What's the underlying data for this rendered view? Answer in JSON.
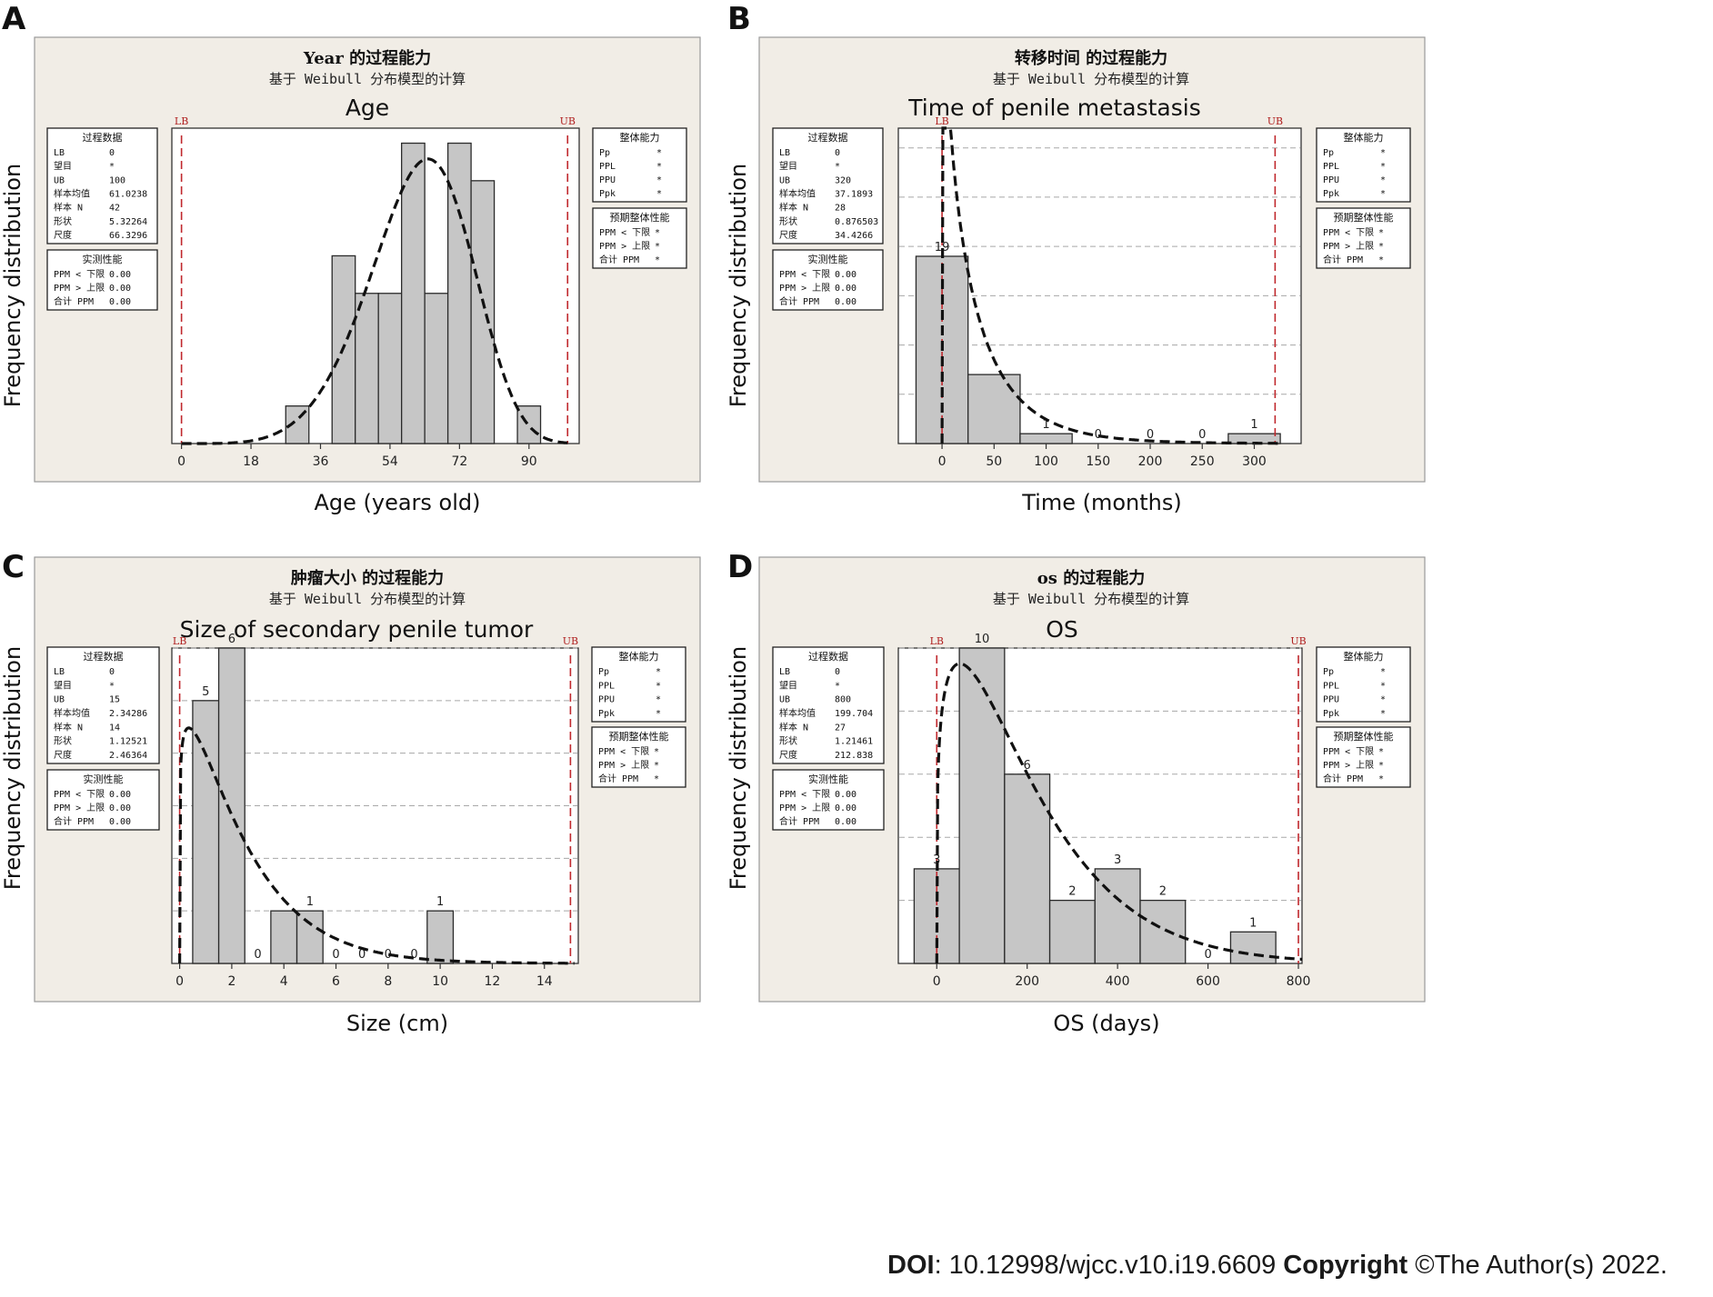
{
  "footer": {
    "doi_label": "DOI",
    "doi_value": ": 10.12998/wjcc.v10.i19.6609 ",
    "copyright_label": "Copyright",
    "copyright_text": " ©The Author(s) 2022."
  },
  "chart_data": [
    {
      "panel_letter": "A",
      "type": "bar",
      "minitab_title": "Year 的过程能力",
      "minitab_subtitle": "基于 Weibull 分布模型的计算",
      "title": "Age",
      "xlabel": "Age (years old)",
      "ylabel": "Frequency distribution",
      "lb_label": "LB",
      "ub_label": "UB",
      "lb": 0,
      "ub": 100,
      "xlim": [
        -2.5,
        103
      ],
      "ylim": [
        0,
        8.4
      ],
      "xticks": [
        0,
        18,
        36,
        54,
        72,
        90
      ],
      "xtick_labels": [
        "0",
        "18",
        "36",
        "54",
        "72",
        "90"
      ],
      "gridlines": [],
      "bins": [
        {
          "left": 27,
          "right": 33,
          "value": 1
        },
        {
          "left": 39,
          "right": 45,
          "value": 5
        },
        {
          "left": 45,
          "right": 51,
          "value": 4
        },
        {
          "left": 51,
          "right": 57,
          "value": 4
        },
        {
          "left": 57,
          "right": 63,
          "value": 8
        },
        {
          "left": 63,
          "right": 69,
          "value": 4
        },
        {
          "left": 69,
          "right": 75,
          "value": 8
        },
        {
          "left": 75,
          "right": 81,
          "value": 7
        },
        {
          "left": 87,
          "right": 93,
          "value": 1
        }
      ],
      "bar_labels": [],
      "fit_curve": {
        "shape": 5.32264,
        "scale": 66.3296,
        "n": 42,
        "binwidth": 6
      },
      "box1": {
        "title": "过程数据",
        "rows": [
          {
            "label": "LB",
            "value": "0"
          },
          {
            "label": "望目",
            "value": "*"
          },
          {
            "label": "UB",
            "value": "100"
          },
          {
            "label": "样本均值",
            "value": "61.0238"
          },
          {
            "label": "样本 N",
            "value": "42"
          },
          {
            "label": "形状",
            "value": "5.32264"
          },
          {
            "label": "尺度",
            "value": "66.3296"
          }
        ]
      },
      "box2": {
        "title": "实测性能",
        "rows": [
          {
            "label": "PPM < 下限",
            "value": "0.00"
          },
          {
            "label": "PPM > 上限",
            "value": "0.00"
          },
          {
            "label": "合计 PPM",
            "value": "0.00"
          }
        ]
      },
      "box3": {
        "title": "整体能力",
        "rows": [
          {
            "label": "Pp",
            "value": "*"
          },
          {
            "label": "PPL",
            "value": "*"
          },
          {
            "label": "PPU",
            "value": "*"
          },
          {
            "label": "Ppk",
            "value": "*"
          }
        ]
      },
      "box4": {
        "title": "预期整体性能",
        "rows": [
          {
            "label": "PPM < 下限",
            "value": "*"
          },
          {
            "label": "PPM > 上限",
            "value": "*"
          },
          {
            "label": "合计 PPM",
            "value": "*"
          }
        ]
      }
    },
    {
      "panel_letter": "B",
      "type": "bar",
      "minitab_title": "转移时间 的过程能力",
      "minitab_subtitle": "基于 Weibull 分布模型的计算",
      "title": "Time of penile metastasis",
      "xlabel": "Time (months)",
      "ylabel": "Frequency distribution",
      "lb_label": "LB",
      "ub_label": "UB",
      "lb": 0,
      "ub": 320,
      "xlim": [
        -42,
        345
      ],
      "ylim": [
        0,
        32
      ],
      "xticks": [
        0,
        50,
        100,
        150,
        200,
        250,
        300
      ],
      "xtick_labels": [
        "0",
        "50",
        "100",
        "150",
        "200",
        "250",
        "300"
      ],
      "gridlines": [
        5,
        10,
        15,
        20,
        25,
        30
      ],
      "bins": [
        {
          "left": -25,
          "right": 25,
          "value": 19
        },
        {
          "left": 25,
          "right": 75,
          "value": 7
        },
        {
          "left": 75,
          "right": 125,
          "value": 1
        },
        {
          "left": 125,
          "right": 175,
          "value": 0
        },
        {
          "left": 175,
          "right": 225,
          "value": 0
        },
        {
          "left": 225,
          "right": 275,
          "value": 0
        },
        {
          "left": 275,
          "right": 325,
          "value": 1
        }
      ],
      "bar_labels": [
        "19",
        "",
        "1",
        "0",
        "0",
        "0",
        "1"
      ],
      "fit_curve": {
        "shape": 0.876503,
        "scale": 34.4266,
        "n": 28,
        "binwidth": 50
      },
      "box1": {
        "title": "过程数据",
        "rows": [
          {
            "label": "LB",
            "value": "0"
          },
          {
            "label": "望目",
            "value": "*"
          },
          {
            "label": "UB",
            "value": "320"
          },
          {
            "label": "样本均值",
            "value": "37.1893"
          },
          {
            "label": "样本 N",
            "value": "28"
          },
          {
            "label": "形状",
            "value": "0.876503"
          },
          {
            "label": "尺度",
            "value": "34.4266"
          }
        ]
      },
      "box2": {
        "title": "实测性能",
        "rows": [
          {
            "label": "PPM < 下限",
            "value": "0.00"
          },
          {
            "label": "PPM > 上限",
            "value": "0.00"
          },
          {
            "label": "合计 PPM",
            "value": "0.00"
          }
        ]
      },
      "box3": {
        "title": "整体能力",
        "rows": [
          {
            "label": "Pp",
            "value": "*"
          },
          {
            "label": "PPL",
            "value": "*"
          },
          {
            "label": "PPU",
            "value": "*"
          },
          {
            "label": "Ppk",
            "value": "*"
          }
        ]
      },
      "box4": {
        "title": "预期整体性能",
        "rows": [
          {
            "label": "PPM < 下限",
            "value": "*"
          },
          {
            "label": "PPM > 上限",
            "value": "*"
          },
          {
            "label": "合计 PPM",
            "value": "*"
          }
        ]
      }
    },
    {
      "panel_letter": "C",
      "type": "bar",
      "minitab_title": "肿瘤大小 的过程能力",
      "minitab_subtitle": "基于 Weibull 分布模型的计算",
      "title": "Size of secondary penile tumor",
      "xlabel": "Size (cm)",
      "ylabel": "Frequency distribution",
      "lb_label": "LB",
      "ub_label": "UB",
      "lb": 0,
      "ub": 15,
      "xlim": [
        -0.3,
        15.3
      ],
      "ylim": [
        0,
        6
      ],
      "xticks": [
        0,
        2,
        4,
        6,
        8,
        10,
        12,
        14
      ],
      "xtick_labels": [
        "0",
        "2",
        "4",
        "6",
        "8",
        "10",
        "12",
        "14"
      ],
      "gridlines": [
        1,
        2,
        3,
        4,
        5,
        6
      ],
      "bins": [
        {
          "left": 0.5,
          "right": 1.5,
          "value": 5
        },
        {
          "left": 1.5,
          "right": 2.5,
          "value": 6
        },
        {
          "left": 2.5,
          "right": 3.5,
          "value": 0
        },
        {
          "left": 3.5,
          "right": 4.5,
          "value": 1
        },
        {
          "left": 4.5,
          "right": 5.5,
          "value": 1
        },
        {
          "left": 5.5,
          "right": 6.5,
          "value": 0
        },
        {
          "left": 6.5,
          "right": 7.5,
          "value": 0
        },
        {
          "left": 7.5,
          "right": 8.5,
          "value": 0
        },
        {
          "left": 8.5,
          "right": 9.5,
          "value": 0
        },
        {
          "left": 9.5,
          "right": 10.5,
          "value": 1
        }
      ],
      "bar_labels": [
        "5",
        "6",
        "0",
        "",
        "1",
        "0",
        "0",
        "0",
        "0",
        "1"
      ],
      "fit_curve": {
        "shape": 1.12521,
        "scale": 2.46364,
        "n": 14,
        "binwidth": 1
      },
      "box1": {
        "title": "过程数据",
        "rows": [
          {
            "label": "LB",
            "value": "0"
          },
          {
            "label": "望目",
            "value": "*"
          },
          {
            "label": "UB",
            "value": "15"
          },
          {
            "label": "样本均值",
            "value": "2.34286"
          },
          {
            "label": "样本 N",
            "value": "14"
          },
          {
            "label": "形状",
            "value": "1.12521"
          },
          {
            "label": "尺度",
            "value": "2.46364"
          }
        ]
      },
      "box2": {
        "title": "实测性能",
        "rows": [
          {
            "label": "PPM < 下限",
            "value": "0.00"
          },
          {
            "label": "PPM > 上限",
            "value": "0.00"
          },
          {
            "label": "合计 PPM",
            "value": "0.00"
          }
        ]
      },
      "box3": {
        "title": "整体能力",
        "rows": [
          {
            "label": "Pp",
            "value": "*"
          },
          {
            "label": "PPL",
            "value": "*"
          },
          {
            "label": "PPU",
            "value": "*"
          },
          {
            "label": "Ppk",
            "value": "*"
          }
        ]
      },
      "box4": {
        "title": "预期整体性能",
        "rows": [
          {
            "label": "PPM < 下限",
            "value": "*"
          },
          {
            "label": "PPM > 上限",
            "value": "*"
          },
          {
            "label": "合计 PPM",
            "value": "*"
          }
        ]
      }
    },
    {
      "panel_letter": "D",
      "type": "bar",
      "minitab_title": "os 的过程能力",
      "minitab_subtitle": "基于 Weibull 分布模型的计算",
      "title": "OS",
      "xlabel": "OS (days)",
      "ylabel": "Frequency distribution",
      "lb_label": "LB",
      "ub_label": "UB",
      "lb": 0,
      "ub": 800,
      "xlim": [
        -85,
        808
      ],
      "ylim": [
        0,
        10
      ],
      "xticks": [
        0,
        200,
        400,
        600,
        800
      ],
      "xtick_labels": [
        "0",
        "200",
        "400",
        "600",
        "800"
      ],
      "gridlines": [
        2,
        4,
        6,
        8,
        10
      ],
      "bins": [
        {
          "left": -50,
          "right": 50,
          "value": 3
        },
        {
          "left": 50,
          "right": 150,
          "value": 10
        },
        {
          "left": 150,
          "right": 250,
          "value": 6
        },
        {
          "left": 250,
          "right": 350,
          "value": 2
        },
        {
          "left": 350,
          "right": 450,
          "value": 3
        },
        {
          "left": 450,
          "right": 550,
          "value": 2
        },
        {
          "left": 550,
          "right": 650,
          "value": 0
        },
        {
          "left": 650,
          "right": 750,
          "value": 1
        }
      ],
      "bar_labels": [
        "3",
        "10",
        "6",
        "2",
        "3",
        "2",
        "0",
        "1"
      ],
      "fit_curve": {
        "shape": 1.21461,
        "scale": 212.838,
        "n": 27,
        "binwidth": 100
      },
      "box1": {
        "title": "过程数据",
        "rows": [
          {
            "label": "LB",
            "value": "0"
          },
          {
            "label": "望目",
            "value": "*"
          },
          {
            "label": "UB",
            "value": "800"
          },
          {
            "label": "样本均值",
            "value": "199.704"
          },
          {
            "label": "样本 N",
            "value": "27"
          },
          {
            "label": "形状",
            "value": "1.21461"
          },
          {
            "label": "尺度",
            "value": "212.838"
          }
        ]
      },
      "box2": {
        "title": "实测性能",
        "rows": [
          {
            "label": "PPM < 下限",
            "value": "0.00"
          },
          {
            "label": "PPM > 上限",
            "value": "0.00"
          },
          {
            "label": "合计 PPM",
            "value": "0.00"
          }
        ]
      },
      "box3": {
        "title": "整体能力",
        "rows": [
          {
            "label": "Pp",
            "value": "*"
          },
          {
            "label": "PPL",
            "value": "*"
          },
          {
            "label": "PPU",
            "value": "*"
          },
          {
            "label": "Ppk",
            "value": "*"
          }
        ]
      },
      "box4": {
        "title": "预期整体性能",
        "rows": [
          {
            "label": "PPM < 下限",
            "value": "*"
          },
          {
            "label": "PPM > 上限",
            "value": "*"
          },
          {
            "label": "合计 PPM",
            "value": "*"
          }
        ]
      }
    }
  ]
}
